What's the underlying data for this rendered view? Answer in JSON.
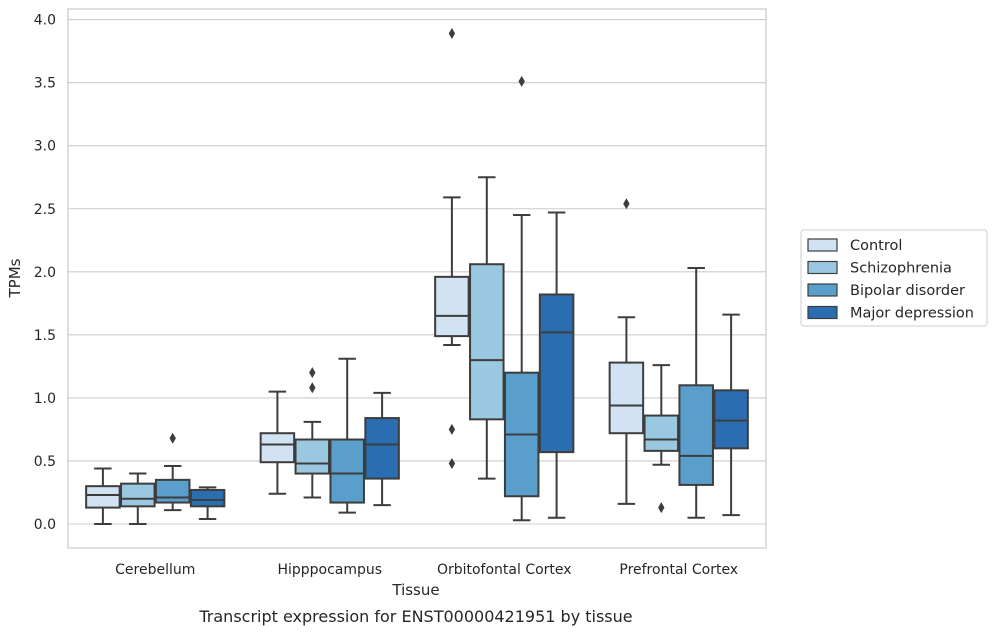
{
  "chart_data": {
    "type": "box",
    "title": "",
    "caption": "Transcript expression for ENST00000421951 by tissue",
    "xlabel": "Tissue",
    "ylabel": "TPMs",
    "ylim": [
      -0.18,
      4.08
    ],
    "yticks": [
      "0.0",
      "0.5",
      "1.0",
      "1.5",
      "2.0",
      "2.5",
      "3.0",
      "3.5",
      "4.0"
    ],
    "grid": "horizontal",
    "legend_position": "right-center",
    "categories": [
      "Cerebellum",
      "Hipppocampus",
      "Orbitofontal Cortex",
      "Prefrontal Cortex"
    ],
    "series": [
      {
        "name": "Control",
        "color": "#d1e2f2",
        "boxes": [
          {
            "whislo": 0.0,
            "q1": 0.13,
            "med": 0.23,
            "q3": 0.3,
            "whishi": 0.44,
            "fliers": []
          },
          {
            "whislo": 0.24,
            "q1": 0.49,
            "med": 0.63,
            "q3": 0.72,
            "whishi": 1.05,
            "fliers": []
          },
          {
            "whislo": 1.42,
            "q1": 1.49,
            "med": 1.65,
            "q3": 1.96,
            "whishi": 2.59,
            "fliers": [
              0.75,
              0.48,
              3.89
            ]
          },
          {
            "whislo": 0.16,
            "q1": 0.72,
            "med": 0.94,
            "q3": 1.28,
            "whishi": 1.64,
            "fliers": [
              2.54
            ]
          }
        ]
      },
      {
        "name": "Schizophrenia",
        "color": "#9ac8e0",
        "boxes": [
          {
            "whislo": 0.0,
            "q1": 0.14,
            "med": 0.2,
            "q3": 0.32,
            "whishi": 0.4,
            "fliers": []
          },
          {
            "whislo": 0.21,
            "q1": 0.4,
            "med": 0.48,
            "q3": 0.67,
            "whishi": 0.81,
            "fliers": [
              1.08,
              1.2
            ]
          },
          {
            "whislo": 0.36,
            "q1": 0.83,
            "med": 1.3,
            "q3": 2.06,
            "whishi": 2.75,
            "fliers": []
          },
          {
            "whislo": 0.47,
            "q1": 0.58,
            "med": 0.67,
            "q3": 0.86,
            "whishi": 1.26,
            "fliers": [
              0.13
            ]
          }
        ]
      },
      {
        "name": "Bipolar disorder",
        "color": "#5a9fcc",
        "boxes": [
          {
            "whislo": 0.11,
            "q1": 0.17,
            "med": 0.21,
            "q3": 0.35,
            "whishi": 0.46,
            "fliers": [
              0.68
            ]
          },
          {
            "whislo": 0.09,
            "q1": 0.17,
            "med": 0.4,
            "q3": 0.67,
            "whishi": 1.31,
            "fliers": []
          },
          {
            "whislo": 0.03,
            "q1": 0.22,
            "med": 0.71,
            "q3": 1.2,
            "whishi": 2.45,
            "fliers": [
              3.51
            ]
          },
          {
            "whislo": 0.05,
            "q1": 0.31,
            "med": 0.54,
            "q3": 1.1,
            "whishi": 2.03,
            "fliers": []
          }
        ]
      },
      {
        "name": "Major depression",
        "color": "#2a6eb1",
        "boxes": [
          {
            "whislo": 0.04,
            "q1": 0.14,
            "med": 0.19,
            "q3": 0.27,
            "whishi": 0.29,
            "fliers": []
          },
          {
            "whislo": 0.15,
            "q1": 0.36,
            "med": 0.63,
            "q3": 0.84,
            "whishi": 1.04,
            "fliers": []
          },
          {
            "whislo": 0.05,
            "q1": 0.57,
            "med": 1.52,
            "q3": 1.82,
            "whishi": 2.47,
            "fliers": []
          },
          {
            "whislo": 0.07,
            "q1": 0.6,
            "med": 0.82,
            "q3": 1.06,
            "whishi": 1.66,
            "fliers": []
          }
        ]
      }
    ]
  }
}
